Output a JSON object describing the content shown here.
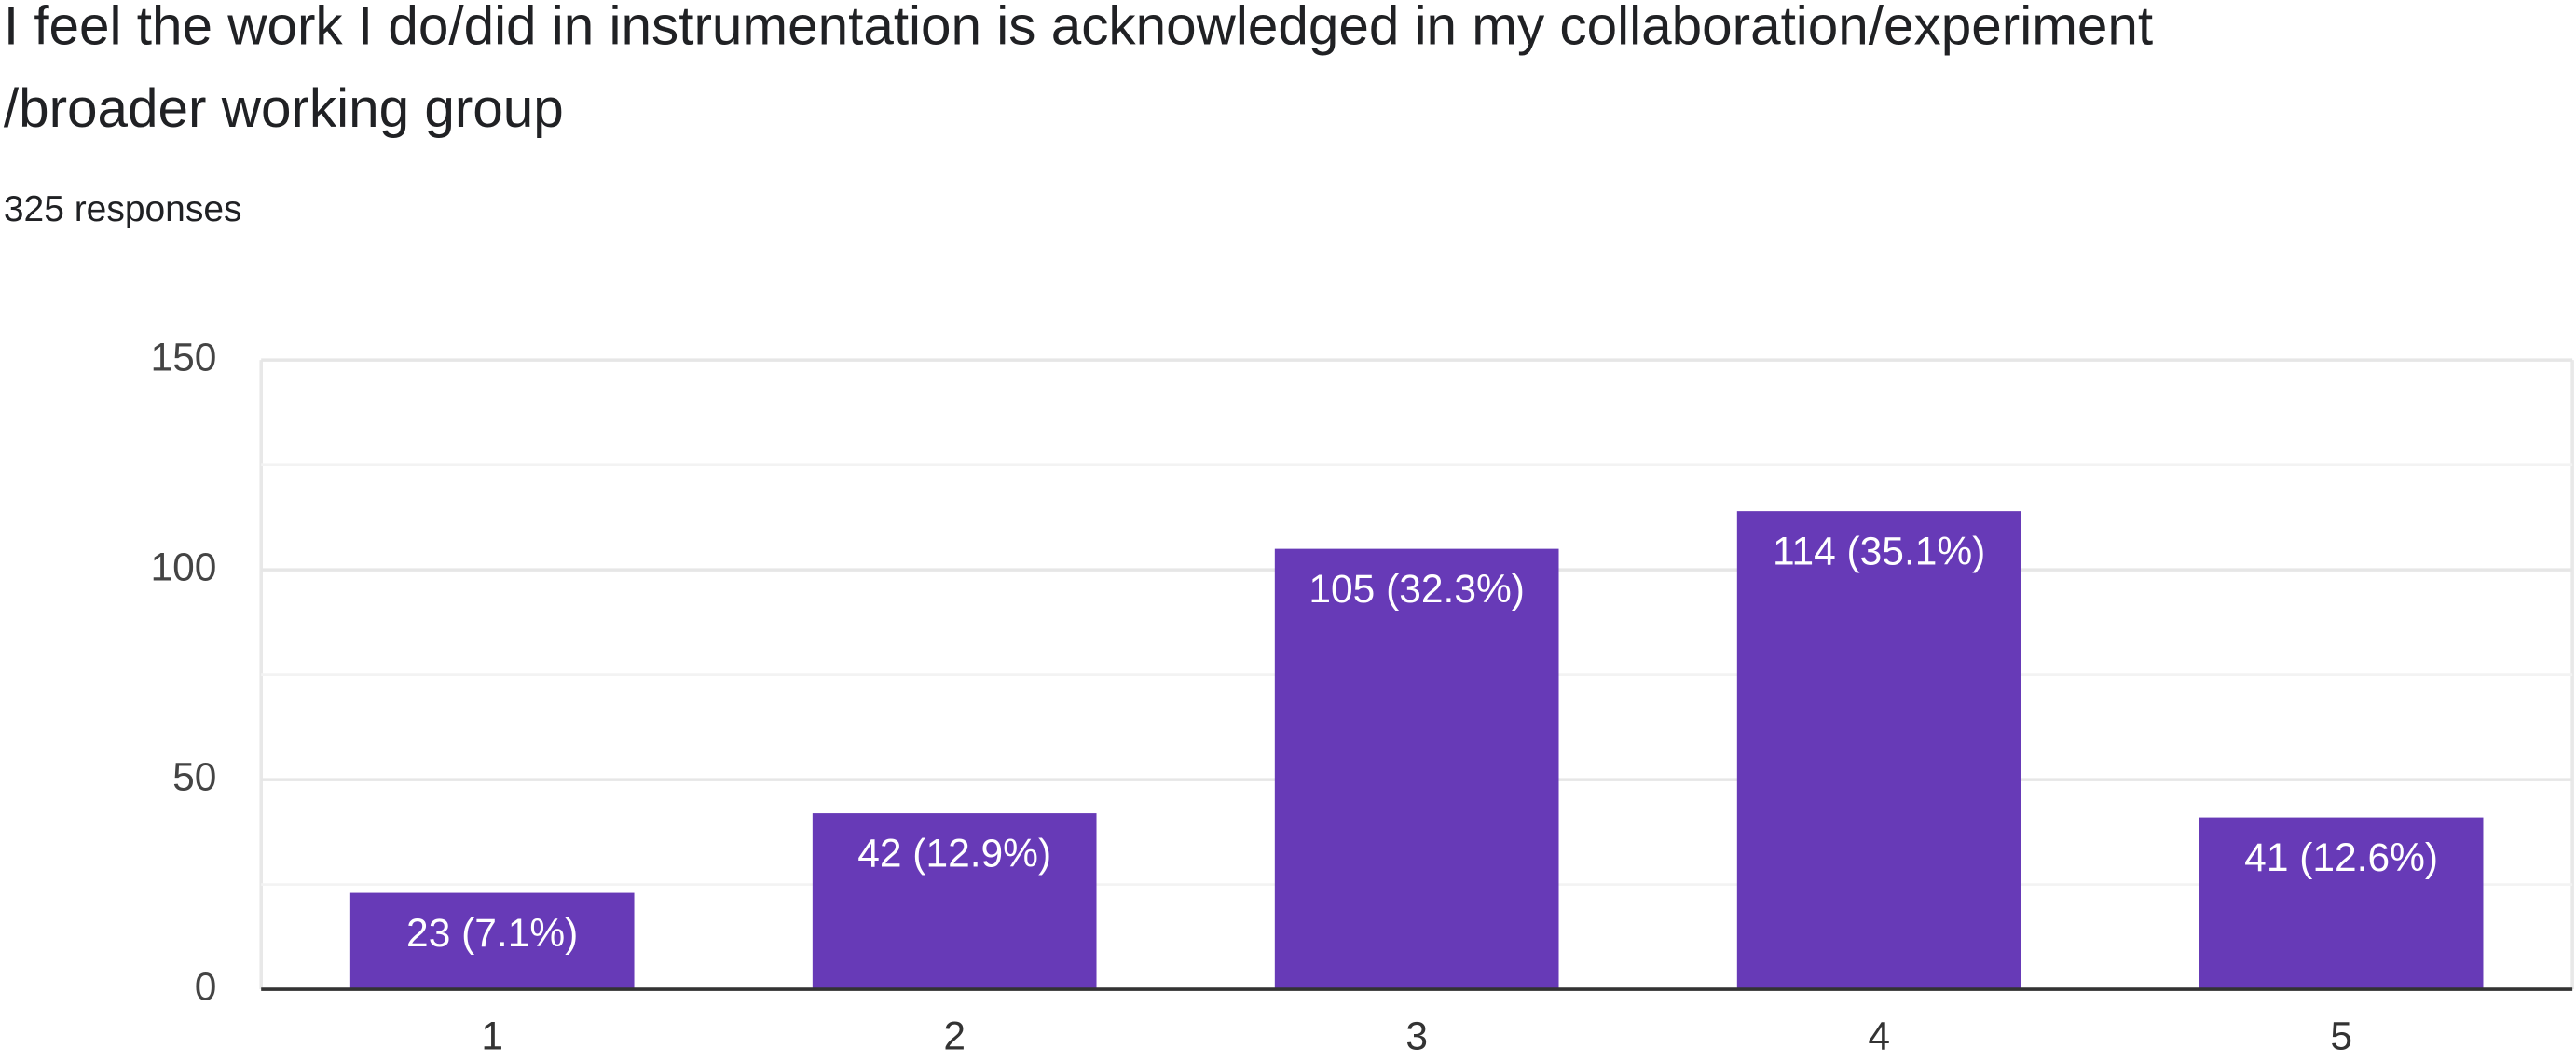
{
  "chart_data": {
    "type": "bar",
    "title": [
      "I feel the work I do/did in instrumentation is acknowledged in my collaboration/experiment",
      "/broader working group"
    ],
    "subtitle": "325 responses",
    "categories": [
      "1",
      "2",
      "3",
      "4",
      "5"
    ],
    "values": [
      23,
      42,
      105,
      114,
      41
    ],
    "value_labels": [
      "23 (7.1%)",
      "42 (12.9%)",
      "105 (32.3%)",
      "114 (35.1%)",
      "41 (12.6%)"
    ],
    "color": "#673ab7",
    "ylim": [
      0,
      150
    ],
    "yticks": [
      0,
      50,
      100,
      150
    ],
    "grid": true
  }
}
